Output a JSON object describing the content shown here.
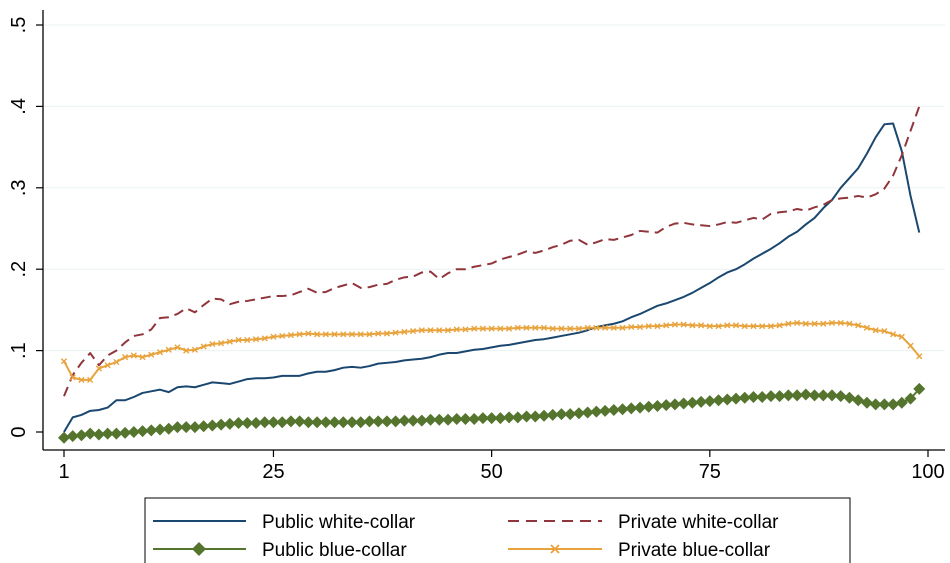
{
  "chart_data": {
    "type": "line",
    "title": "",
    "xlabel": "",
    "ylabel": "",
    "xlim": [
      1,
      100
    ],
    "ylim": [
      0,
      0.5
    ],
    "x_ticks": [
      1,
      25,
      50,
      75,
      100
    ],
    "x_tick_labels": [
      "1",
      "25",
      "50",
      "75",
      "100"
    ],
    "y_ticks": [
      0,
      0.1,
      0.2,
      0.3,
      0.4,
      0.5
    ],
    "y_tick_labels": [
      "0",
      ".1",
      ".2",
      ".3",
      ".4",
      ".5"
    ],
    "grid": "horizontal",
    "legend_placement": "bottom",
    "x": [
      1,
      2,
      3,
      4,
      5,
      6,
      7,
      8,
      9,
      10,
      11,
      12,
      13,
      14,
      15,
      16,
      17,
      18,
      19,
      20,
      21,
      22,
      23,
      24,
      25,
      26,
      27,
      28,
      29,
      30,
      31,
      32,
      33,
      34,
      35,
      36,
      37,
      38,
      39,
      40,
      41,
      42,
      43,
      44,
      45,
      46,
      47,
      48,
      49,
      50,
      51,
      52,
      53,
      54,
      55,
      56,
      57,
      58,
      59,
      60,
      61,
      62,
      63,
      64,
      65,
      66,
      67,
      68,
      69,
      70,
      71,
      72,
      73,
      74,
      75,
      76,
      77,
      78,
      79,
      80,
      81,
      82,
      83,
      84,
      85,
      86,
      87,
      88,
      89,
      90,
      91,
      92,
      93,
      94,
      95,
      96,
      97,
      98,
      99
    ],
    "series": [
      {
        "name": "Public white-collar",
        "color": "#1a476f",
        "style": "solid",
        "marker": "none",
        "values": [
          0.0,
          0.018,
          0.021,
          0.026,
          0.027,
          0.03,
          0.039,
          0.039,
          0.043,
          0.048,
          0.05,
          0.052,
          0.049,
          0.055,
          0.056,
          0.055,
          0.058,
          0.061,
          0.06,
          0.059,
          0.062,
          0.065,
          0.066,
          0.066,
          0.067,
          0.069,
          0.069,
          0.069,
          0.072,
          0.074,
          0.074,
          0.076,
          0.079,
          0.08,
          0.079,
          0.081,
          0.084,
          0.085,
          0.086,
          0.088,
          0.089,
          0.09,
          0.092,
          0.095,
          0.097,
          0.097,
          0.099,
          0.101,
          0.102,
          0.104,
          0.106,
          0.107,
          0.109,
          0.111,
          0.113,
          0.114,
          0.116,
          0.118,
          0.12,
          0.122,
          0.125,
          0.129,
          0.131,
          0.133,
          0.136,
          0.141,
          0.145,
          0.15,
          0.155,
          0.158,
          0.162,
          0.166,
          0.171,
          0.177,
          0.183,
          0.19,
          0.196,
          0.2,
          0.206,
          0.213,
          0.219,
          0.225,
          0.232,
          0.24,
          0.246,
          0.255,
          0.263,
          0.275,
          0.285,
          0.3,
          0.312,
          0.324,
          0.342,
          0.362,
          0.378,
          0.379,
          0.345,
          0.29,
          0.245
        ]
      },
      {
        "name": "Private white-collar",
        "color": "#90353b",
        "style": "dashed",
        "marker": "none",
        "values": [
          0.044,
          0.07,
          0.085,
          0.097,
          0.082,
          0.094,
          0.1,
          0.11,
          0.118,
          0.12,
          0.126,
          0.14,
          0.141,
          0.145,
          0.152,
          0.147,
          0.156,
          0.164,
          0.163,
          0.157,
          0.16,
          0.161,
          0.163,
          0.165,
          0.167,
          0.167,
          0.168,
          0.172,
          0.176,
          0.171,
          0.172,
          0.177,
          0.18,
          0.183,
          0.177,
          0.178,
          0.181,
          0.182,
          0.187,
          0.19,
          0.191,
          0.196,
          0.197,
          0.188,
          0.195,
          0.2,
          0.2,
          0.203,
          0.205,
          0.207,
          0.212,
          0.215,
          0.218,
          0.222,
          0.22,
          0.223,
          0.227,
          0.23,
          0.235,
          0.236,
          0.23,
          0.233,
          0.237,
          0.236,
          0.239,
          0.242,
          0.247,
          0.246,
          0.245,
          0.252,
          0.256,
          0.257,
          0.255,
          0.254,
          0.253,
          0.255,
          0.258,
          0.257,
          0.26,
          0.263,
          0.261,
          0.268,
          0.27,
          0.271,
          0.274,
          0.272,
          0.276,
          0.279,
          0.285,
          0.287,
          0.288,
          0.29,
          0.288,
          0.292,
          0.299,
          0.315,
          0.34,
          0.37,
          0.4
        ]
      },
      {
        "name": "Public blue-collar",
        "color": "#55752f",
        "style": "solid",
        "marker": "diamond",
        "values": [
          -0.007,
          -0.005,
          -0.004,
          -0.002,
          -0.003,
          -0.002,
          -0.002,
          -0.001,
          0.0,
          0.001,
          0.002,
          0.003,
          0.004,
          0.006,
          0.006,
          0.006,
          0.007,
          0.008,
          0.009,
          0.01,
          0.011,
          0.011,
          0.011,
          0.012,
          0.012,
          0.012,
          0.013,
          0.013,
          0.012,
          0.012,
          0.012,
          0.012,
          0.012,
          0.012,
          0.012,
          0.013,
          0.013,
          0.013,
          0.013,
          0.014,
          0.014,
          0.014,
          0.015,
          0.015,
          0.015,
          0.016,
          0.016,
          0.016,
          0.017,
          0.017,
          0.017,
          0.018,
          0.018,
          0.019,
          0.019,
          0.02,
          0.021,
          0.022,
          0.022,
          0.023,
          0.024,
          0.025,
          0.026,
          0.027,
          0.028,
          0.029,
          0.03,
          0.031,
          0.032,
          0.033,
          0.034,
          0.035,
          0.036,
          0.037,
          0.038,
          0.039,
          0.04,
          0.041,
          0.042,
          0.043,
          0.043,
          0.044,
          0.044,
          0.045,
          0.045,
          0.046,
          0.045,
          0.045,
          0.045,
          0.044,
          0.042,
          0.039,
          0.036,
          0.034,
          0.034,
          0.034,
          0.036,
          0.041,
          0.053
        ]
      },
      {
        "name": "Private blue-collar",
        "color": "#e8a33d",
        "style": "solid",
        "marker": "x",
        "values": [
          0.087,
          0.067,
          0.064,
          0.064,
          0.078,
          0.082,
          0.086,
          0.092,
          0.094,
          0.092,
          0.095,
          0.098,
          0.101,
          0.104,
          0.1,
          0.101,
          0.105,
          0.108,
          0.109,
          0.111,
          0.113,
          0.113,
          0.114,
          0.115,
          0.117,
          0.118,
          0.119,
          0.12,
          0.121,
          0.12,
          0.12,
          0.12,
          0.12,
          0.12,
          0.12,
          0.12,
          0.121,
          0.121,
          0.122,
          0.123,
          0.124,
          0.125,
          0.125,
          0.125,
          0.125,
          0.126,
          0.126,
          0.127,
          0.127,
          0.127,
          0.127,
          0.127,
          0.128,
          0.128,
          0.128,
          0.128,
          0.127,
          0.127,
          0.127,
          0.127,
          0.128,
          0.128,
          0.128,
          0.128,
          0.128,
          0.129,
          0.129,
          0.13,
          0.13,
          0.131,
          0.132,
          0.132,
          0.131,
          0.131,
          0.13,
          0.13,
          0.131,
          0.131,
          0.13,
          0.13,
          0.13,
          0.13,
          0.131,
          0.133,
          0.134,
          0.133,
          0.133,
          0.133,
          0.134,
          0.134,
          0.133,
          0.131,
          0.128,
          0.125,
          0.124,
          0.12,
          0.117,
          0.106,
          0.093
        ]
      }
    ]
  },
  "legend": [
    {
      "label": "Public white-collar"
    },
    {
      "label": "Private white-collar"
    },
    {
      "label": "Public blue-collar"
    },
    {
      "label": "Private blue-collar"
    }
  ]
}
